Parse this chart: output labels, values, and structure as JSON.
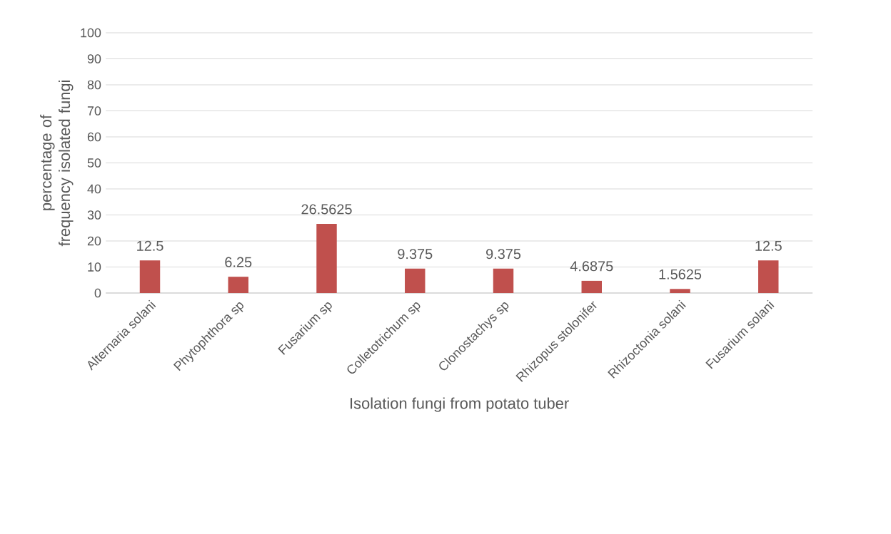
{
  "chart_data": {
    "type": "bar",
    "xlabel": "Isolation fungi from potato tuber",
    "ylabel": "percentage of frequency isolated fungi",
    "categories": [
      "Alternaria solani",
      "Phytophthora  sp",
      "Fusarium sp",
      "Colletotrichum sp",
      "Clonostachys sp",
      "Rhizopus stolonifer",
      "Rhizoctonia solani",
      "Fusarium solani"
    ],
    "values": [
      12.5,
      6.25,
      26.5625,
      9.375,
      9.375,
      4.6875,
      1.5625,
      12.5
    ],
    "color": "#c0504d",
    "ylim": [
      0,
      100
    ],
    "yticks": [
      0,
      10,
      20,
      30,
      40,
      50,
      60,
      70,
      80,
      90,
      100
    ],
    "grid": "y",
    "data_labels": true
  }
}
